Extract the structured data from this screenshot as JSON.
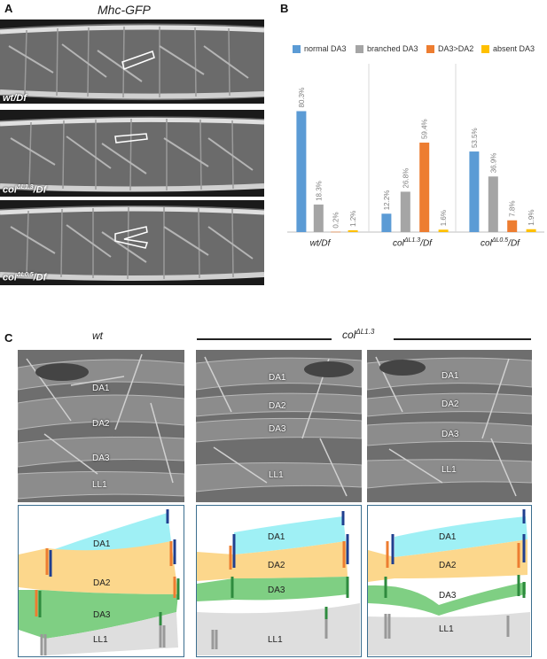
{
  "panel_a": {
    "label": "A",
    "title": "Mhc-GFP",
    "genotypes": [
      {
        "base": "wt/Df",
        "sup": ""
      },
      {
        "base": "col",
        "sup": "ΔL1.3",
        "rest": "/Df"
      },
      {
        "base": "col",
        "sup": "ΔL0.5",
        "rest": "/Df"
      }
    ]
  },
  "panel_b": {
    "label": "B"
  },
  "panel_c": {
    "label": "C",
    "wt_title": "wt",
    "mut_title": "col",
    "mut_sup": "ΔL1.3",
    "muscles": [
      "DA1",
      "DA2",
      "DA3",
      "LL1"
    ]
  },
  "colors": {
    "normal": "#5b9bd5",
    "branched": "#a5a5a5",
    "da3da2": "#ed7d31",
    "absent": "#ffc000",
    "da1": "#9ff0f5",
    "da2": "#fcd78c",
    "da3": "#7fcf83",
    "ll1": "#d9d9d9"
  },
  "chart_data": {
    "type": "bar",
    "categories": [
      {
        "base": "wt/Df",
        "sup": "",
        "rest": ""
      },
      {
        "base": "col",
        "sup": "ΔL1.3",
        "rest": "/Df"
      },
      {
        "base": "col",
        "sup": "ΔL0.5",
        "rest": "/Df"
      }
    ],
    "series": [
      {
        "name": "normal DA3",
        "color": "#5b9bd5",
        "values": [
          80.3,
          12.2,
          53.5
        ],
        "labels": [
          "80.3%",
          "12.2%",
          "53.5%"
        ]
      },
      {
        "name": "branched DA3",
        "color": "#a5a5a5",
        "values": [
          18.3,
          26.8,
          36.9
        ],
        "labels": [
          "18.3%",
          "26.8%",
          "36.9%"
        ]
      },
      {
        "name": "DA3>DA2",
        "color": "#ed7d31",
        "values": [
          0.2,
          59.4,
          7.8
        ],
        "labels": [
          "0.2%",
          "59.4%",
          "7.8%"
        ]
      },
      {
        "name": "absent DA3",
        "color": "#ffc000",
        "values": [
          1.2,
          1.6,
          1.9
        ],
        "labels": [
          "1.2%",
          "1.6%",
          "1.9%"
        ]
      }
    ],
    "ylim": [
      0,
      100
    ],
    "legend": "top",
    "grid": false
  }
}
